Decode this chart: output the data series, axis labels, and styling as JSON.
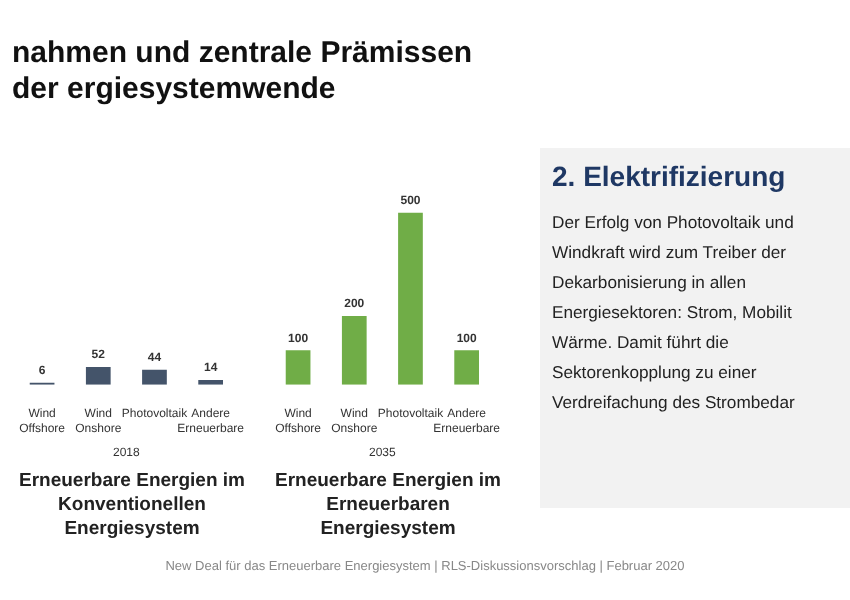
{
  "chart_data": [
    {
      "type": "bar",
      "title": "nahmen und zentrale Prämissen der ergiesystemwende",
      "categories": [
        "Wind Offshore",
        "Wind Onshore",
        "Photovoltaik",
        "Andere Erneuerbare"
      ],
      "values": [
        6,
        52,
        44,
        14
      ],
      "color": "#44546a",
      "data_labels": true,
      "xlabel": "2018",
      "annotations": [
        "Erneuerbare Energien im Konventionellen Energiesystem",
        "New Deal für das Erneuerbare Energiesystem | RLS-Diskussionsvorschlag | Februar 2020"
      ]
    },
    {
      "type": "bar",
      "categories": [
        "Wind Offshore",
        "Wind Onshore",
        "Photovoltaik",
        "Andere Erneuerbare"
      ],
      "values": [
        100,
        200,
        500,
        100
      ],
      "color": "#70ad47",
      "data_labels": true,
      "xlabel": "2035",
      "annotations": [
        "Erneuerbare Energien im Erneuerbaren Energiesystem"
      ]
    },
    {
      "type": "other",
      "title": "2. Elektrifizierung",
      "annotations": [
        "Der Erfolg von Photovoltaik und Windkraft wird zum Treiber der Dekarbonisierung in allen Energiesektoren: Strom, Mobilit Wärme. Damit führt die Sektorenkopplung zu einer Verdreifachung des Strombedar"
      ]
    }
  ]
}
